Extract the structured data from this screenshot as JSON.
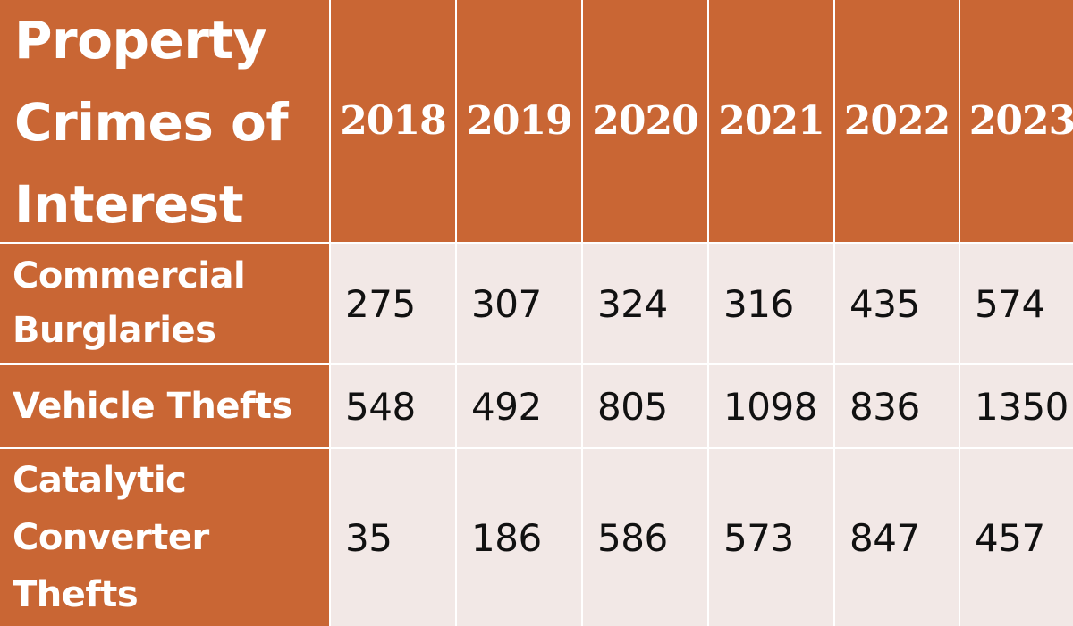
{
  "table": {
    "corner_title": "Property Crimes of Interest",
    "years": [
      "2018",
      "2019",
      "2020",
      "2021",
      "2022",
      "2023"
    ],
    "rows": [
      {
        "label": "Commercial Burglaries",
        "values": [
          "275",
          "307",
          "324",
          "316",
          "435",
          "574"
        ]
      },
      {
        "label": "Vehicle Thefts",
        "values": [
          "548",
          "492",
          "805",
          "1098",
          "836",
          "1350"
        ]
      },
      {
        "label": "Catalytic Converter Thefts",
        "values": [
          "35",
          "186",
          "586",
          "573",
          "847",
          "457"
        ]
      }
    ]
  },
  "colors": {
    "header_bg": "#c96634",
    "cell_bg": "#f2e8e6",
    "grid_line": "#ffffff"
  }
}
